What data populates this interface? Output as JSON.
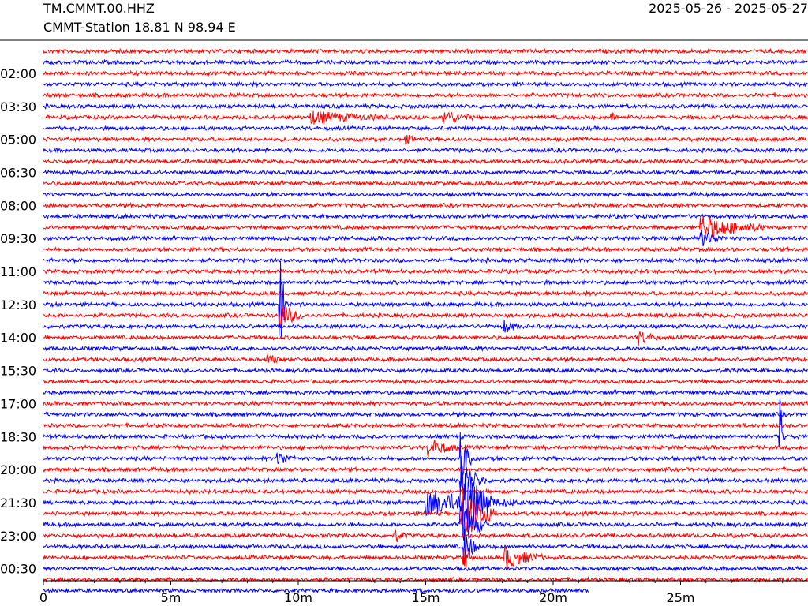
{
  "header": {
    "station": "TM.CMMT.00.HHZ",
    "station_name": "CMMT-Station  18.81 N 98.94 E",
    "date_range": "2025-05-26 - 2025-05-27"
  },
  "chart_data": {
    "type": "line",
    "title": "",
    "xlabel": "",
    "ylabel": "",
    "x_range_minutes": [
      0,
      30
    ],
    "x_ticks": [
      "0",
      "5m",
      "10m",
      "15m",
      "20m",
      "25m"
    ],
    "x_tick_values": [
      0,
      5,
      10,
      15,
      20,
      25
    ],
    "y_tick_labels": [
      "02:00",
      "03:30",
      "05:00",
      "06:30",
      "08:00",
      "09:30",
      "11:00",
      "12:30",
      "14:00",
      "15:30",
      "17:00",
      "18:30",
      "20:00",
      "21:30",
      "23:00",
      "00:30"
    ],
    "trace_count": 50,
    "trace_colors": [
      "#ff0000",
      "#0000ff"
    ],
    "last_trace_end_minute": 21.4,
    "events": [
      {
        "trace": 6,
        "minute": 10.5,
        "amplitude": 2.0,
        "duration_min": 3.0
      },
      {
        "trace": 6,
        "minute": 15.7,
        "amplitude": 2.2,
        "duration_min": 1.2
      },
      {
        "trace": 6,
        "minute": 22.3,
        "amplitude": 1.2,
        "duration_min": 0.4
      },
      {
        "trace": 8,
        "minute": 14.2,
        "amplitude": 1.1,
        "duration_min": 0.8
      },
      {
        "trace": 16,
        "minute": 25.8,
        "amplitude": 4.0,
        "duration_min": 2.6
      },
      {
        "trace": 17,
        "minute": 25.8,
        "amplitude": 2.5,
        "duration_min": 1.0
      },
      {
        "trace": 23,
        "minute": 9.3,
        "amplitude": 14.0,
        "duration_min": 0.3
      },
      {
        "trace": 24,
        "minute": 9.3,
        "amplitude": 4.0,
        "duration_min": 1.0
      },
      {
        "trace": 25,
        "minute": 18.1,
        "amplitude": 2.0,
        "duration_min": 0.6
      },
      {
        "trace": 26,
        "minute": 23.3,
        "amplitude": 2.5,
        "duration_min": 0.8
      },
      {
        "trace": 28,
        "minute": 8.8,
        "amplitude": 1.5,
        "duration_min": 0.6
      },
      {
        "trace": 36,
        "minute": 15.1,
        "amplitude": 3.0,
        "duration_min": 1.2
      },
      {
        "trace": 37,
        "minute": 9.2,
        "amplitude": 2.0,
        "duration_min": 0.8
      },
      {
        "trace": 37,
        "minute": 16.4,
        "amplitude": 10.0,
        "duration_min": 0.4
      },
      {
        "trace": 39,
        "minute": 16.4,
        "amplitude": 6.0,
        "duration_min": 1.0
      },
      {
        "trace": 41,
        "minute": 15.0,
        "amplitude": 4.0,
        "duration_min": 3.8
      },
      {
        "trace": 41,
        "minute": 16.4,
        "amplitude": 12.0,
        "duration_min": 1.2
      },
      {
        "trace": 42,
        "minute": 16.4,
        "amplitude": 10.0,
        "duration_min": 1.4
      },
      {
        "trace": 43,
        "minute": 16.4,
        "amplitude": 8.0,
        "duration_min": 1.0
      },
      {
        "trace": 44,
        "minute": 13.8,
        "amplitude": 2.0,
        "duration_min": 0.5
      },
      {
        "trace": 45,
        "minute": 16.5,
        "amplitude": 6.0,
        "duration_min": 0.6
      },
      {
        "trace": 46,
        "minute": 18.1,
        "amplitude": 3.5,
        "duration_min": 1.6
      },
      {
        "trace": 46,
        "minute": 16.5,
        "amplitude": 5.0,
        "duration_min": 0.4
      },
      {
        "trace": 35,
        "minute": 28.9,
        "amplitude": 13.0,
        "duration_min": 0.2
      }
    ]
  }
}
